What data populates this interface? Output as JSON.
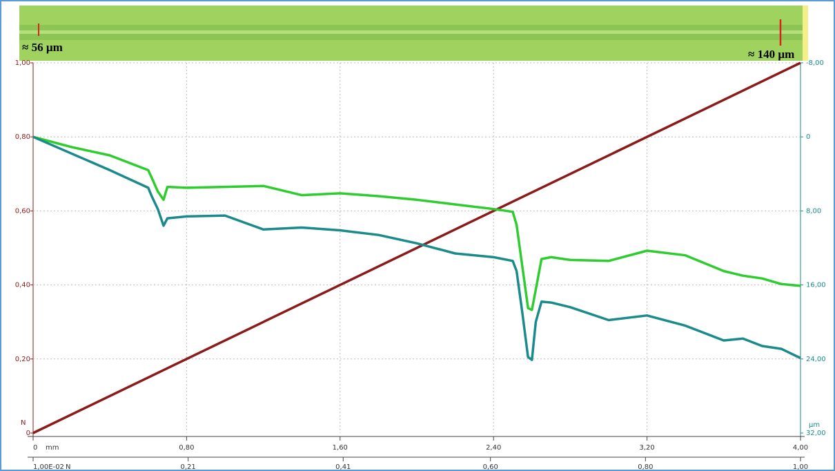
{
  "chart_data": {
    "type": "line",
    "annotations": [
      "≈ 56 µm",
      "≈ 140 µm"
    ],
    "xlabel": "mm",
    "ylabel": "N",
    "y2label": "µm",
    "x2label": "N",
    "xlim": [
      0,
      4.0
    ],
    "xticks": [
      0,
      {
        "value": 0.8,
        "label": "0,80"
      },
      {
        "value": 1.6,
        "label": "1,60"
      },
      {
        "value": 2.4,
        "label": "2,40"
      },
      {
        "value": 3.2,
        "label": "3,20"
      },
      {
        "value": 4.0,
        "label": "4,00"
      }
    ],
    "x2lim": [
      0.01,
      1.0
    ],
    "x2ticks": [
      {
        "value": 0.01,
        "label": "1,00E-02"
      },
      {
        "value": 0.21,
        "label": "0,21"
      },
      {
        "value": 0.41,
        "label": "0,41"
      },
      {
        "value": 0.6,
        "label": "0,60"
      },
      {
        "value": 0.8,
        "label": "0,80"
      },
      {
        "value": 1.0,
        "label": "1,00"
      }
    ],
    "ylim": [
      0,
      1.0
    ],
    "yticks": [
      0,
      {
        "value": 0.2,
        "label": "0,20"
      },
      {
        "value": 0.4,
        "label": "0,40"
      },
      {
        "value": 0.6,
        "label": "0,60"
      },
      {
        "value": 0.8,
        "label": "0,80"
      },
      {
        "value": 1.0,
        "label": "1,00"
      }
    ],
    "y2lim": [
      32,
      -8
    ],
    "y2ticks": [
      {
        "value": -8,
        "label": "-8,00"
      },
      0,
      {
        "value": 8,
        "label": "8,00"
      },
      {
        "value": 16,
        "label": "16,00"
      },
      {
        "value": 24,
        "label": "24,00"
      },
      {
        "value": 32,
        "label": "32,00"
      }
    ],
    "grid": true,
    "series": [
      {
        "color": "#8b1a1a",
        "x": [
          0,
          4.0
        ],
        "values": [
          0,
          1.0
        ]
      },
      {
        "color": "#2ecc2e",
        "axis": "y2",
        "x": [
          0,
          0.2,
          0.4,
          0.6,
          0.62,
          0.65,
          0.68,
          0.7,
          0.8,
          1.0,
          1.2,
          1.4,
          1.6,
          1.8,
          2.0,
          2.2,
          2.4,
          2.5,
          2.52,
          2.55,
          2.58,
          2.6,
          2.62,
          2.65,
          2.7,
          2.8,
          3.0,
          3.2,
          3.4,
          3.6,
          3.7,
          3.8,
          3.9,
          4.0
        ],
        "values": [
          0,
          1.1,
          2.0,
          3.6,
          4.5,
          5.9,
          6.8,
          5.4,
          5.5,
          5.4,
          5.3,
          6.3,
          6.1,
          6.4,
          6.8,
          7.3,
          7.8,
          8.1,
          9.5,
          14,
          18.5,
          18.7,
          16.5,
          13.2,
          13.0,
          13.3,
          13.4,
          12.3,
          12.8,
          14.5,
          15.0,
          15.3,
          15.9,
          16.1
        ]
      },
      {
        "color": "#1a8a8a",
        "axis": "y2",
        "x": [
          0,
          0.2,
          0.4,
          0.6,
          0.62,
          0.65,
          0.68,
          0.7,
          0.8,
          1.0,
          1.2,
          1.4,
          1.6,
          1.8,
          2.0,
          2.2,
          2.4,
          2.5,
          2.52,
          2.55,
          2.58,
          2.6,
          2.62,
          2.65,
          2.7,
          2.8,
          3.0,
          3.2,
          3.4,
          3.6,
          3.7,
          3.8,
          3.9,
          4.0
        ],
        "values": [
          0,
          1.8,
          3.6,
          5.5,
          6.5,
          7.8,
          9.6,
          8.8,
          8.6,
          8.5,
          10.0,
          9.8,
          10.1,
          10.6,
          11.5,
          12.6,
          13.0,
          13.4,
          14.5,
          19,
          23.8,
          24.1,
          20,
          17.8,
          17.9,
          18.4,
          19.8,
          19.3,
          20.4,
          22.0,
          21.8,
          22.6,
          22.9,
          23.9
        ]
      }
    ]
  }
}
